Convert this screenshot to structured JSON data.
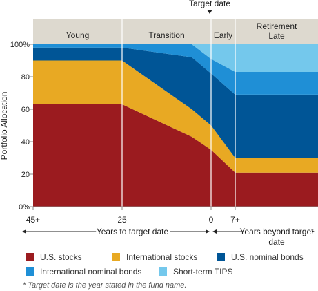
{
  "chart_data": {
    "type": "area",
    "stacked": true,
    "x": [
      45,
      25,
      5,
      0,
      -7,
      -24
    ],
    "x_ticks": [
      {
        "value": 45,
        "label": "45+"
      },
      {
        "value": 25,
        "label": "25"
      },
      {
        "value": 0,
        "label": "0"
      },
      {
        "value": -7,
        "label": "7+"
      }
    ],
    "y_ticks": [
      "0%",
      "20",
      "40",
      "60",
      "80",
      "100%"
    ],
    "ylim": [
      0,
      100
    ],
    "ylabel": "Portfolio Allocation",
    "xlabel_left": "Years to target date",
    "xlabel_right": "Years beyond target date",
    "target_label": "Target date",
    "phases": [
      {
        "name": "Young",
        "from": 45,
        "to": 25
      },
      {
        "name": "Transition",
        "from": 25,
        "to": 0
      },
      {
        "name": "Early",
        "from": 0,
        "to": -7
      },
      {
        "name": "Retirement Late",
        "from": -7,
        "to": -24
      }
    ],
    "series": [
      {
        "name": "U.S. stocks",
        "color": "#9b1b1f",
        "values": [
          63,
          63,
          43,
          35,
          21,
          21
        ]
      },
      {
        "name": "International stocks",
        "color": "#e8a923",
        "values": [
          27,
          27,
          17,
          15,
          9,
          9
        ]
      },
      {
        "name": "U.S. nominal bonds",
        "color": "#005596",
        "values": [
          8,
          8,
          32,
          32,
          39,
          39
        ]
      },
      {
        "name": "International nominal bonds",
        "color": "#1f8fd6",
        "values": [
          2,
          2,
          8,
          9,
          14,
          14
        ]
      },
      {
        "name": "Short-term TIPS",
        "color": "#74c8ec",
        "values": [
          0,
          0,
          0,
          9,
          17,
          17
        ]
      }
    ],
    "footnote": "* Target date is the year stated in the fund name."
  }
}
